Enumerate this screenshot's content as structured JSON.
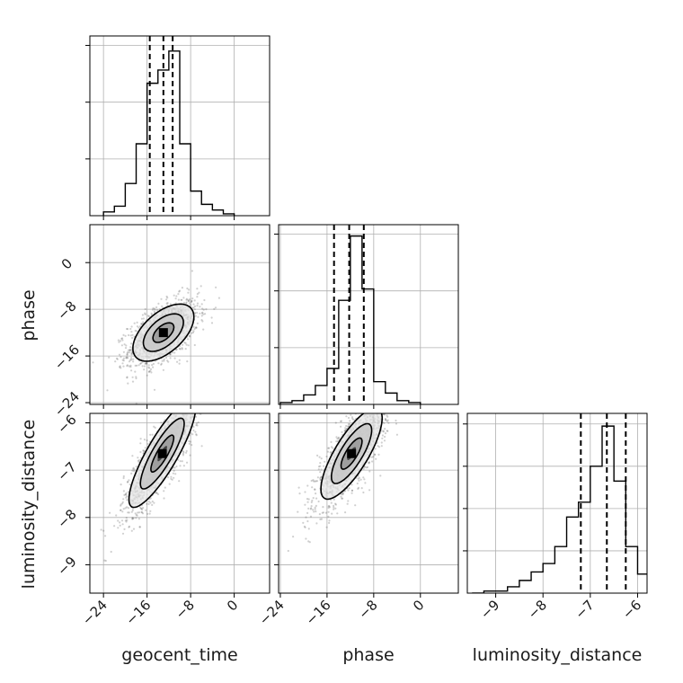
{
  "chart_data": {
    "type": "corner",
    "parameters": [
      {
        "name": "geocent_time",
        "label": "geocent_time",
        "range": [
          -26.5,
          6.5
        ],
        "ticks": [
          -24,
          -16,
          -8,
          0
        ],
        "tick_labels": [
          "−24",
          "−16",
          "−8",
          "0"
        ]
      },
      {
        "name": "phase",
        "label": "phase",
        "range": [
          -24.3,
          6.5
        ],
        "ticks": [
          -24,
          -16,
          -8,
          0
        ],
        "tick_labels": [
          "−24",
          "−16",
          "−8",
          "0"
        ]
      },
      {
        "name": "luminosity_distance",
        "label": "luminosity_distance",
        "range": [
          -9.6,
          -5.8
        ],
        "ticks": [
          -9,
          -8,
          -7,
          -6
        ],
        "tick_labels": [
          "−9",
          "−8",
          "−7",
          "−6"
        ]
      }
    ],
    "histograms": [
      {
        "parameter": "geocent_time",
        "bin_edges": [
          -24,
          -22,
          -20,
          -18,
          -16,
          -14,
          -12,
          -10,
          -8,
          -6,
          -4,
          -2,
          0
        ],
        "counts": [
          2,
          5,
          17,
          38,
          70,
          77,
          87,
          38,
          13,
          6,
          3,
          1
        ],
        "ylim": [
          0,
          95
        ],
        "quantiles": [
          -15.5,
          -13.0,
          -11.3
        ]
      },
      {
        "parameter": "phase",
        "bin_edges": [
          -24,
          -22,
          -20,
          -18,
          -16,
          -14,
          -12,
          -10,
          -8,
          -6,
          -4,
          -2,
          0
        ],
        "counts": [
          1,
          2,
          5,
          10,
          19,
          55,
          89,
          61,
          12,
          6,
          2,
          1
        ],
        "ylim": [
          0,
          95
        ],
        "quantiles": [
          -14.8,
          -12.2,
          -9.7
        ]
      },
      {
        "parameter": "luminosity_distance",
        "bin_edges": [
          -9.5,
          -9.25,
          -9.0,
          -8.75,
          -8.5,
          -8.25,
          -8.0,
          -7.75,
          -7.5,
          -7.25,
          -7.0,
          -6.75,
          -6.5,
          -6.25,
          -6.0,
          -5.75
        ],
        "counts": [
          0,
          1,
          1,
          3,
          6,
          10,
          14,
          22,
          36,
          43,
          60,
          79,
          53,
          22,
          9
        ],
        "ylim": [
          0,
          85
        ],
        "quantiles": [
          -7.2,
          -6.65,
          -6.25
        ]
      }
    ],
    "contour_panels": [
      {
        "x": "geocent_time",
        "y": "phase",
        "center": [
          -13.0,
          -12.0
        ],
        "sigma": [
          3.2,
          2.8
        ],
        "rho": 0.55
      },
      {
        "x": "geocent_time",
        "y": "luminosity_distance",
        "center": [
          -13.2,
          -6.65
        ],
        "sigma": [
          3.5,
          0.65
        ],
        "rho": 0.85
      },
      {
        "x": "phase",
        "y": "luminosity_distance",
        "center": [
          -11.8,
          -6.65
        ],
        "sigma": [
          3.0,
          0.55
        ],
        "rho": 0.78
      }
    ],
    "grid": true,
    "colors": {
      "lines": "#000000",
      "grid": "#b0b0b0",
      "points": "#555555",
      "contour_fill_light": "#e6e6e6",
      "contour_fill_mid": "#9a9a9a",
      "contour_fill_dark": "#404040"
    }
  }
}
